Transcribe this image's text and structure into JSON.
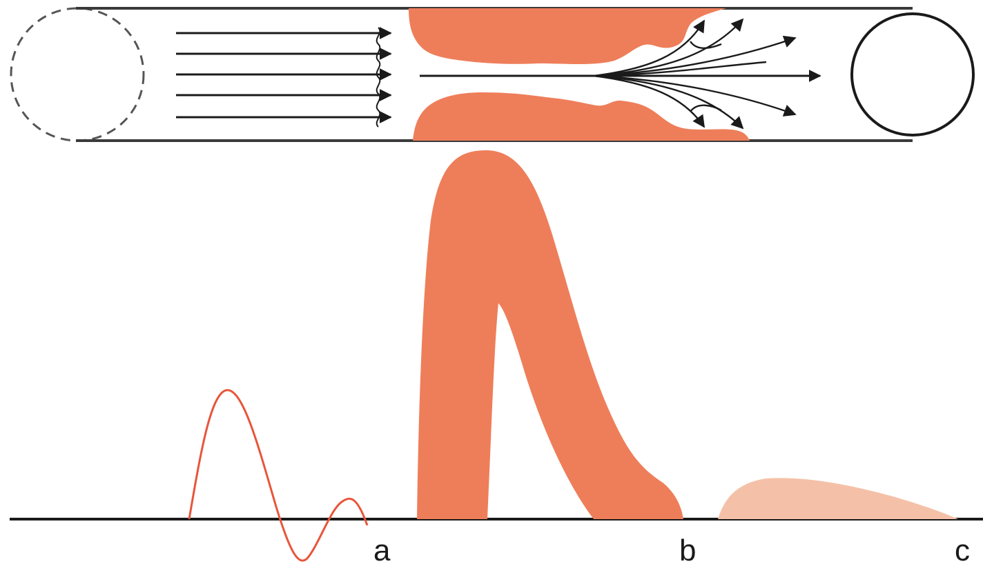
{
  "labels": {
    "a": "a",
    "b": "b",
    "c": "c"
  },
  "colors": {
    "plug": "#ee7e5a",
    "plug_light": "#f4c1a8",
    "wave": "#e8553a",
    "line": "#1a1a1a",
    "vessel": "#3a3a3a"
  }
}
